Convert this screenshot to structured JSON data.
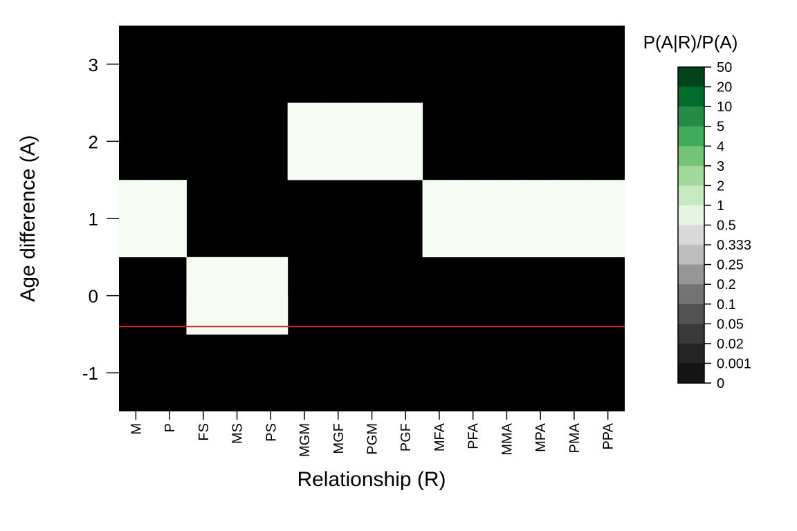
{
  "chart_data": {
    "type": "heatmap",
    "xlabel": "Relationship (R)",
    "ylabel": "Age difference (A)",
    "categories": [
      "M",
      "P",
      "FS",
      "MS",
      "PS",
      "MGM",
      "MGF",
      "PGM",
      "PGF",
      "MFA",
      "PFA",
      "MMA",
      "MPA",
      "PMA",
      "PPA"
    ],
    "y_values": [
      3,
      2,
      1,
      0,
      -1
    ],
    "ylim": [
      -1.5,
      3.5
    ],
    "cell_fill_default": "#000000",
    "cell_fill_highlight": "#f5faf3",
    "highlight_cells": {
      "M": [
        1
      ],
      "P": [
        1
      ],
      "FS": [
        0,
        -0.5
      ],
      "MS": [
        0,
        -0.5
      ],
      "PS": [
        0,
        -0.5
      ],
      "MGM": [
        2
      ],
      "MGF": [
        2
      ],
      "PGM": [
        2
      ],
      "PGF": [
        2
      ],
      "MFA": [
        1
      ],
      "PFA": [
        1
      ],
      "MMA": [
        1
      ],
      "MPA": [
        1
      ],
      "PMA": [
        1
      ],
      "PPA": [
        1
      ]
    },
    "reference_line": {
      "y": -0.4,
      "color": "#d62728"
    },
    "legend": {
      "title": "P(A|R)/P(A)",
      "placement": "right",
      "labels": [
        "50",
        "20",
        "10",
        "5",
        "4",
        "3",
        "2",
        "1",
        "0.5",
        "0.333",
        "0.25",
        "0.2",
        "0.1",
        "0.05",
        "0.02",
        "0.001",
        "0"
      ],
      "colors": [
        "#00441b",
        "#006d2c",
        "#238b45",
        "#41ab5d",
        "#74c476",
        "#a1d99b",
        "#c7e9c0",
        "#e5f5e0",
        "#d9d9d9",
        "#bdbdbd",
        "#969696",
        "#737373",
        "#525252",
        "#3a3a3a",
        "#252525",
        "#141414"
      ]
    }
  }
}
